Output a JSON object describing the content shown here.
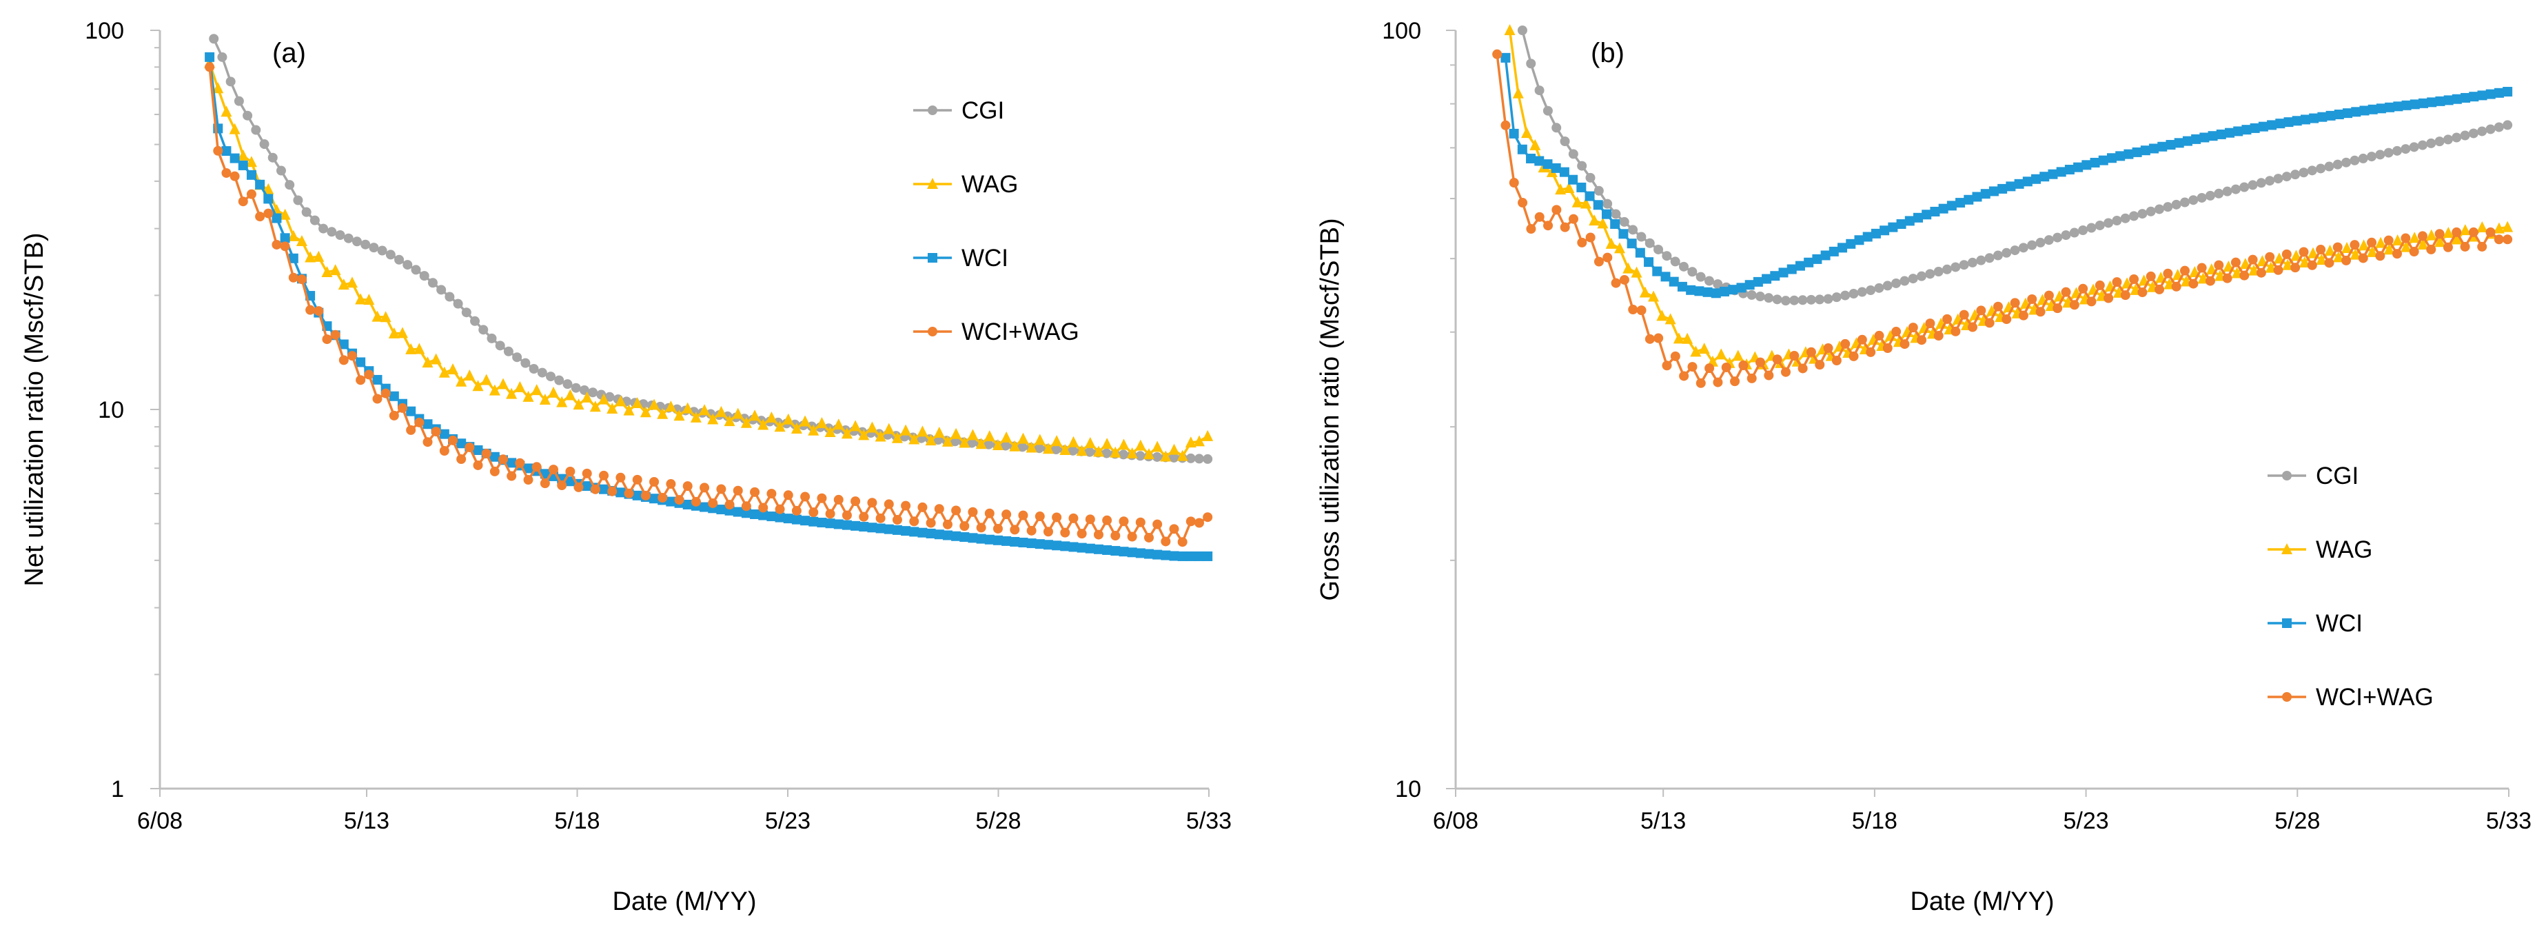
{
  "chart_data": [
    {
      "type": "line",
      "panel_label": "(a)",
      "xlabel": "Date (M/YY)",
      "ylabel": "Net utilization ratio (Mscf/STB)",
      "yscale": "log",
      "ylim": [
        1,
        100
      ],
      "xlim": [
        2008.42,
        2033.33
      ],
      "yticks": [
        {
          "v": 1,
          "label": "1"
        },
        {
          "v": 10,
          "label": "10"
        },
        {
          "v": 100,
          "label": "100"
        }
      ],
      "xticks": [
        {
          "v": 2008.42,
          "label": "6/08"
        },
        {
          "v": 2013.33,
          "label": "5/13"
        },
        {
          "v": 2018.33,
          "label": "5/18"
        },
        {
          "v": 2023.33,
          "label": "5/23"
        },
        {
          "v": 2028.33,
          "label": "5/28"
        },
        {
          "v": 2033.33,
          "label": "5/33"
        }
      ],
      "legend_position": "top-right",
      "series": [
        {
          "name": "CGI",
          "color": "#A5A5A5",
          "marker": "circle",
          "wiggle": 0,
          "x": [
            2009.7,
            2009.9,
            2010.2,
            2010.6,
            2011.0,
            2011.4,
            2011.8,
            2012.3,
            2013.0,
            2013.8,
            2014.6,
            2015.5,
            2016.4,
            2017.3,
            2018.3,
            2019.5,
            2021.0,
            2022.5,
            2024.0,
            2026.0,
            2028.0,
            2030.0,
            2032.0,
            2033.3
          ],
          "y": [
            95,
            85,
            68,
            57,
            48,
            41,
            34,
            30,
            28,
            26,
            23,
            19,
            15,
            12.8,
            11.4,
            10.5,
            9.9,
            9.4,
            9.0,
            8.5,
            8.1,
            7.8,
            7.5,
            7.4
          ]
        },
        {
          "name": "WAG",
          "color": "#FFC000",
          "marker": "triangle",
          "wiggle": 0.025,
          "x": [
            2009.6,
            2009.9,
            2010.3,
            2010.8,
            2011.3,
            2011.8,
            2012.3,
            2013.0,
            2013.8,
            2014.6,
            2015.5,
            2016.5,
            2017.5,
            2018.5,
            2019.5,
            2021.0,
            2022.5,
            2024.0,
            2026.0,
            2028.0,
            2030.0,
            2032.0,
            2032.6,
            2033.3
          ],
          "y": [
            82,
            65,
            50,
            40,
            33,
            27,
            24,
            21,
            17,
            14,
            12.2,
            11.4,
            10.9,
            10.5,
            10.2,
            9.8,
            9.4,
            9.0,
            8.6,
            8.3,
            8.0,
            7.8,
            7.6,
            8.5
          ]
        },
        {
          "name": "WCI",
          "color": "#1F98D8",
          "marker": "square",
          "wiggle": 0,
          "x": [
            2009.6,
            2009.8,
            2010.0,
            2010.4,
            2010.9,
            2011.3,
            2011.8,
            2012.3,
            2013.0,
            2013.8,
            2014.6,
            2015.5,
            2016.5,
            2017.5,
            2018.5,
            2019.5,
            2021.0,
            2022.5,
            2024.0,
            2026.0,
            2028.0,
            2030.0,
            2032.0,
            2032.6,
            2033.3
          ],
          "y": [
            85,
            55,
            48,
            44,
            38,
            30,
            22,
            17,
            14,
            11.3,
            9.4,
            8.2,
            7.4,
            6.8,
            6.3,
            6.0,
            5.6,
            5.3,
            5.05,
            4.8,
            4.55,
            4.35,
            4.15,
            4.1,
            4.1
          ]
        },
        {
          "name": "WCI+WAG",
          "color": "#F07F30",
          "marker": "circle",
          "wiggle": 0.045,
          "x": [
            2009.6,
            2009.8,
            2010.0,
            2010.4,
            2010.9,
            2011.3,
            2011.8,
            2012.3,
            2013.0,
            2013.8,
            2014.6,
            2015.5,
            2016.5,
            2017.5,
            2018.5,
            2019.5,
            2021.0,
            2022.5,
            2024.0,
            2026.0,
            2028.0,
            2030.0,
            2032.0,
            2032.6,
            2033.3
          ],
          "y": [
            80,
            48,
            42,
            37,
            33,
            27,
            21,
            16.5,
            13.2,
            10.5,
            8.8,
            7.8,
            7.1,
            6.7,
            6.5,
            6.3,
            6.0,
            5.8,
            5.6,
            5.35,
            5.1,
            4.95,
            4.8,
            4.6,
            5.2
          ]
        }
      ]
    },
    {
      "type": "line",
      "panel_label": "(b)",
      "xlabel": "Date (M/YY)",
      "ylabel": "Gross utilization ratio (Mscf/STB)",
      "yscale": "log",
      "ylim": [
        10,
        100
      ],
      "xlim": [
        2008.42,
        2033.33
      ],
      "yticks": [
        {
          "v": 10,
          "label": "10"
        },
        {
          "v": 100,
          "label": "100"
        }
      ],
      "xticks": [
        {
          "v": 2008.42,
          "label": "6/08"
        },
        {
          "v": 2013.33,
          "label": "5/13"
        },
        {
          "v": 2018.33,
          "label": "5/18"
        },
        {
          "v": 2023.33,
          "label": "5/23"
        },
        {
          "v": 2028.33,
          "label": "5/28"
        },
        {
          "v": 2033.33,
          "label": "5/33"
        }
      ],
      "legend_position": "bottom-right",
      "series": [
        {
          "name": "CGI",
          "color": "#A5A5A5",
          "marker": "circle",
          "wiggle": 0,
          "x": [
            2010.0,
            2010.3,
            2010.7,
            2011.1,
            2011.6,
            2012.1,
            2012.7,
            2013.5,
            2014.3,
            2015.2,
            2016.2,
            2017.2,
            2018.3,
            2019.5,
            2021.0,
            2022.5,
            2024.0,
            2026.0,
            2028.0,
            2030.0,
            2032.0,
            2033.3
          ],
          "y": [
            100,
            86,
            76,
            70,
            64,
            58,
            54,
            50,
            47,
            45,
            44,
            44.2,
            45.5,
            47.5,
            50,
            53,
            56,
            60,
            64,
            68,
            72,
            75
          ]
        },
        {
          "name": "WAG",
          "color": "#FFC000",
          "marker": "triangle",
          "wiggle": 0.012,
          "x": [
            2009.7,
            2010.0,
            2010.4,
            2010.8,
            2011.3,
            2011.8,
            2012.4,
            2013.1,
            2013.8,
            2014.5,
            2015.5,
            2016.5,
            2017.5,
            2018.5,
            2019.5,
            2021.0,
            2022.5,
            2024.0,
            2026.0,
            2028.0,
            2030.0,
            2032.0,
            2033.3
          ],
          "y": [
            100,
            75,
            68,
            63,
            60,
            56,
            50,
            44,
            39,
            37,
            36.6,
            37,
            37.8,
            38.8,
            40,
            42,
            43.8,
            45.5,
            47.5,
            49.5,
            51.5,
            53.5,
            55
          ]
        },
        {
          "name": "WCI",
          "color": "#1F98D8",
          "marker": "square",
          "wiggle": 0,
          "x": [
            2009.6,
            2009.8,
            2010.1,
            2010.5,
            2011.0,
            2011.4,
            2011.9,
            2012.5,
            2013.2,
            2013.9,
            2014.6,
            2015.2,
            2016.0,
            2017.0,
            2018.0,
            2019.5,
            2021.0,
            2022.5,
            2024.0,
            2026.0,
            2028.0,
            2030.0,
            2032.0,
            2033.3
          ],
          "y": [
            92,
            73,
            68,
            67,
            65,
            62,
            58,
            53,
            48,
            45.5,
            45,
            45.8,
            47.5,
            50,
            53,
            57,
            61,
            64.5,
            68,
            72,
            75.5,
            78.5,
            81,
            83
          ]
        },
        {
          "name": "WCI+WAG",
          "color": "#F07F30",
          "marker": "circle",
          "wiggle": 0.022,
          "x": [
            2009.4,
            2009.6,
            2009.8,
            2010.0,
            2010.3,
            2010.7,
            2011.1,
            2011.5,
            2011.9,
            2012.4,
            2012.9,
            2013.4,
            2014.1,
            2015.0,
            2016.0,
            2017.0,
            2018.0,
            2019.5,
            2021.0,
            2022.5,
            2024.0,
            2026.0,
            2028.0,
            2030.0,
            2032.0,
            2033.3
          ],
          "y": [
            93,
            75,
            63,
            58,
            55,
            57,
            56,
            53,
            50,
            46,
            41,
            37,
            35,
            35.2,
            36,
            37,
            38.2,
            40,
            42,
            43.8,
            45.5,
            47.5,
            49.5,
            51.3,
            53,
            53
          ]
        }
      ]
    }
  ]
}
